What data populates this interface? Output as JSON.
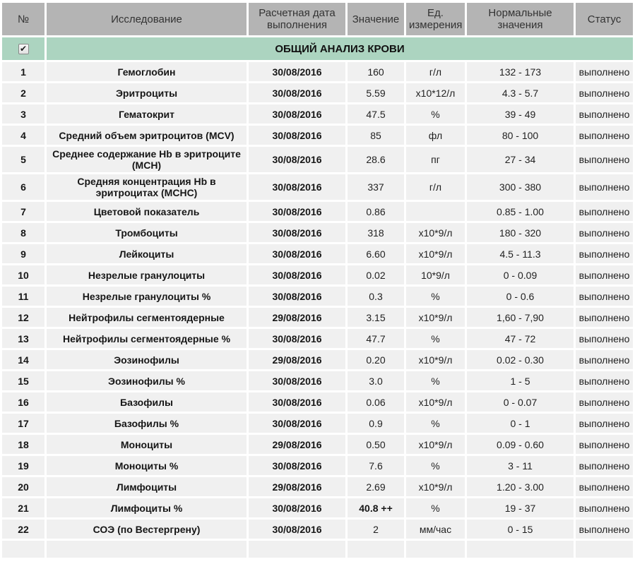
{
  "table": {
    "columns": [
      {
        "key": "num",
        "label": "№"
      },
      {
        "key": "name",
        "label": "Исследование"
      },
      {
        "key": "date",
        "label": "Расчетная дата выполнения"
      },
      {
        "key": "value",
        "label": "Значение"
      },
      {
        "key": "unit",
        "label": "Ед. измерения"
      },
      {
        "key": "normal",
        "label": "Нормальные значения"
      },
      {
        "key": "status",
        "label": "Статус"
      }
    ],
    "section": {
      "title": "ОБЩИЙ АНАЛИЗ КРОВИ",
      "checkbox_checked": true
    },
    "rows": [
      {
        "num": "1",
        "name": "Гемоглобин",
        "date": "30/08/2016",
        "value": "160",
        "unit": "г/л",
        "normal": "132 - 173",
        "status": "выполнено"
      },
      {
        "num": "2",
        "name": "Эритроциты",
        "date": "30/08/2016",
        "value": "5.59",
        "unit": "х10*12/л",
        "normal": "4.3 - 5.7",
        "status": "выполнено"
      },
      {
        "num": "3",
        "name": "Гематокрит",
        "date": "30/08/2016",
        "value": "47.5",
        "unit": "%",
        "normal": "39 - 49",
        "status": "выполнено"
      },
      {
        "num": "4",
        "name": "Средний объем эритроцитов (MCV)",
        "date": "30/08/2016",
        "value": "85",
        "unit": "фл",
        "normal": "80 - 100",
        "status": "выполнено"
      },
      {
        "num": "5",
        "name": "Среднее содержание Hb в эритроците (MCH)",
        "date": "30/08/2016",
        "value": "28.6",
        "unit": "пг",
        "normal": "27 - 34",
        "status": "выполнено"
      },
      {
        "num": "6",
        "name": "Средняя концентрация Hb в эритроцитах (MCHC)",
        "date": "30/08/2016",
        "value": "337",
        "unit": "г/л",
        "normal": "300 - 380",
        "status": "выполнено"
      },
      {
        "num": "7",
        "name": "Цветовой показатель",
        "date": "30/08/2016",
        "value": "0.86",
        "unit": "",
        "normal": "0.85 - 1.00",
        "status": "выполнено"
      },
      {
        "num": "8",
        "name": "Тромбоциты",
        "date": "30/08/2016",
        "value": "318",
        "unit": "х10*9/л",
        "normal": "180 - 320",
        "status": "выполнено"
      },
      {
        "num": "9",
        "name": "Лейкоциты",
        "date": "30/08/2016",
        "value": "6.60",
        "unit": "х10*9/л",
        "normal": "4.5 - 11.3",
        "status": "выполнено"
      },
      {
        "num": "10",
        "name": "Незрелые гранулоциты",
        "date": "30/08/2016",
        "value": "0.02",
        "unit": "10*9/л",
        "normal": "0 - 0.09",
        "status": "выполнено"
      },
      {
        "num": "11",
        "name": "Незрелые гранулоциты %",
        "date": "30/08/2016",
        "value": "0.3",
        "unit": "%",
        "normal": "0 - 0.6",
        "status": "выполнено"
      },
      {
        "num": "12",
        "name": "Нейтрофилы сегментоядерные",
        "date": "29/08/2016",
        "value": "3.15",
        "unit": "х10*9/л",
        "normal": "1,60 - 7,90",
        "status": "выполнено"
      },
      {
        "num": "13",
        "name": "Нейтрофилы сегментоядерные %",
        "date": "30/08/2016",
        "value": "47.7",
        "unit": "%",
        "normal": "47 - 72",
        "status": "выполнено"
      },
      {
        "num": "14",
        "name": "Эозинофилы",
        "date": "29/08/2016",
        "value": "0.20",
        "unit": "х10*9/л",
        "normal": "0.02 - 0.30",
        "status": "выполнено"
      },
      {
        "num": "15",
        "name": "Эозинофилы %",
        "date": "30/08/2016",
        "value": "3.0",
        "unit": "%",
        "normal": "1 - 5",
        "status": "выполнено"
      },
      {
        "num": "16",
        "name": "Базофилы",
        "date": "30/08/2016",
        "value": "0.06",
        "unit": "х10*9/л",
        "normal": "0 - 0.07",
        "status": "выполнено"
      },
      {
        "num": "17",
        "name": "Базофилы %",
        "date": "30/08/2016",
        "value": "0.9",
        "unit": "%",
        "normal": "0 - 1",
        "status": "выполнено"
      },
      {
        "num": "18",
        "name": "Моноциты",
        "date": "29/08/2016",
        "value": "0.50",
        "unit": "х10*9/л",
        "normal": "0.09 - 0.60",
        "status": "выполнено"
      },
      {
        "num": "19",
        "name": "Моноциты %",
        "date": "30/08/2016",
        "value": "7.6",
        "unit": "%",
        "normal": "3 - 11",
        "status": "выполнено"
      },
      {
        "num": "20",
        "name": "Лимфоциты",
        "date": "29/08/2016",
        "value": "2.69",
        "unit": "х10*9/л",
        "normal": "1.20 - 3.00",
        "status": "выполнено"
      },
      {
        "num": "21",
        "name": "Лимфоциты %",
        "date": "30/08/2016",
        "value": "40.8 ++",
        "value_bold": true,
        "unit": "%",
        "normal": "19 - 37",
        "status": "выполнено"
      },
      {
        "num": "22",
        "name": "СОЭ (по Вестергрену)",
        "date": "30/08/2016",
        "value": "2",
        "unit": "мм/час",
        "normal": "0 - 15",
        "status": "выполнено"
      }
    ]
  },
  "colors": {
    "header_bg": "#b4b4b4",
    "section_bg": "#acd4c0",
    "row_bg": "#f0f0f0",
    "gap_bg": "#ffffff",
    "text": "#1f1f1f"
  }
}
